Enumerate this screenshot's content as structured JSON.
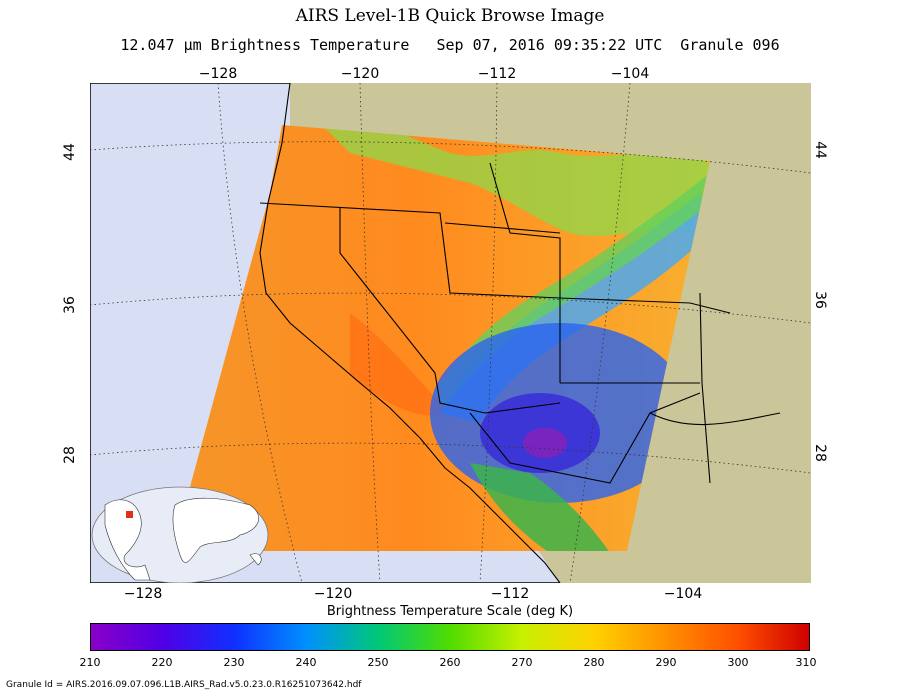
{
  "title": "AIRS Level-1B Quick Browse Image",
  "subtitle": "12.047 µm Brightness Temperature   Sep 07, 2016 09:35:22 UTC  Granule 096",
  "lon_ticks_top": [
    "−128",
    "−120",
    "−112",
    "−104"
  ],
  "lon_ticks_bottom": [
    "−128",
    "−120",
    "−112",
    "−104"
  ],
  "lat_ticks_left": [
    "44",
    "36",
    "28"
  ],
  "lat_ticks_right": [
    "44",
    "36",
    "28"
  ],
  "scale": {
    "title": "Brightness Temperature Scale (deg K)",
    "ticks": [
      "210",
      "220",
      "230",
      "240",
      "250",
      "260",
      "270",
      "280",
      "290",
      "300",
      "310"
    ],
    "min": 210,
    "max": 310,
    "colors": [
      "#8a00c8",
      "#5000e6",
      "#1030ff",
      "#0090ff",
      "#00c878",
      "#50dc00",
      "#c8f000",
      "#ffd200",
      "#ff9000",
      "#ff5000",
      "#d00000"
    ]
  },
  "colors": {
    "ocean": "#d8dff5",
    "land": "#cbc69a",
    "swath_warm": "#f59a2a",
    "swath_hot": "#ff7a18",
    "cloud_mid": "#78d23c",
    "cloud_cold": "#2850f0",
    "cloud_coldest": "#6a28c8"
  },
  "granule_id": "Granule Id = AIRS.2016.09.07.096.L1B.AIRS_Rad.v5.0.23.0.R16251073642.hdf"
}
